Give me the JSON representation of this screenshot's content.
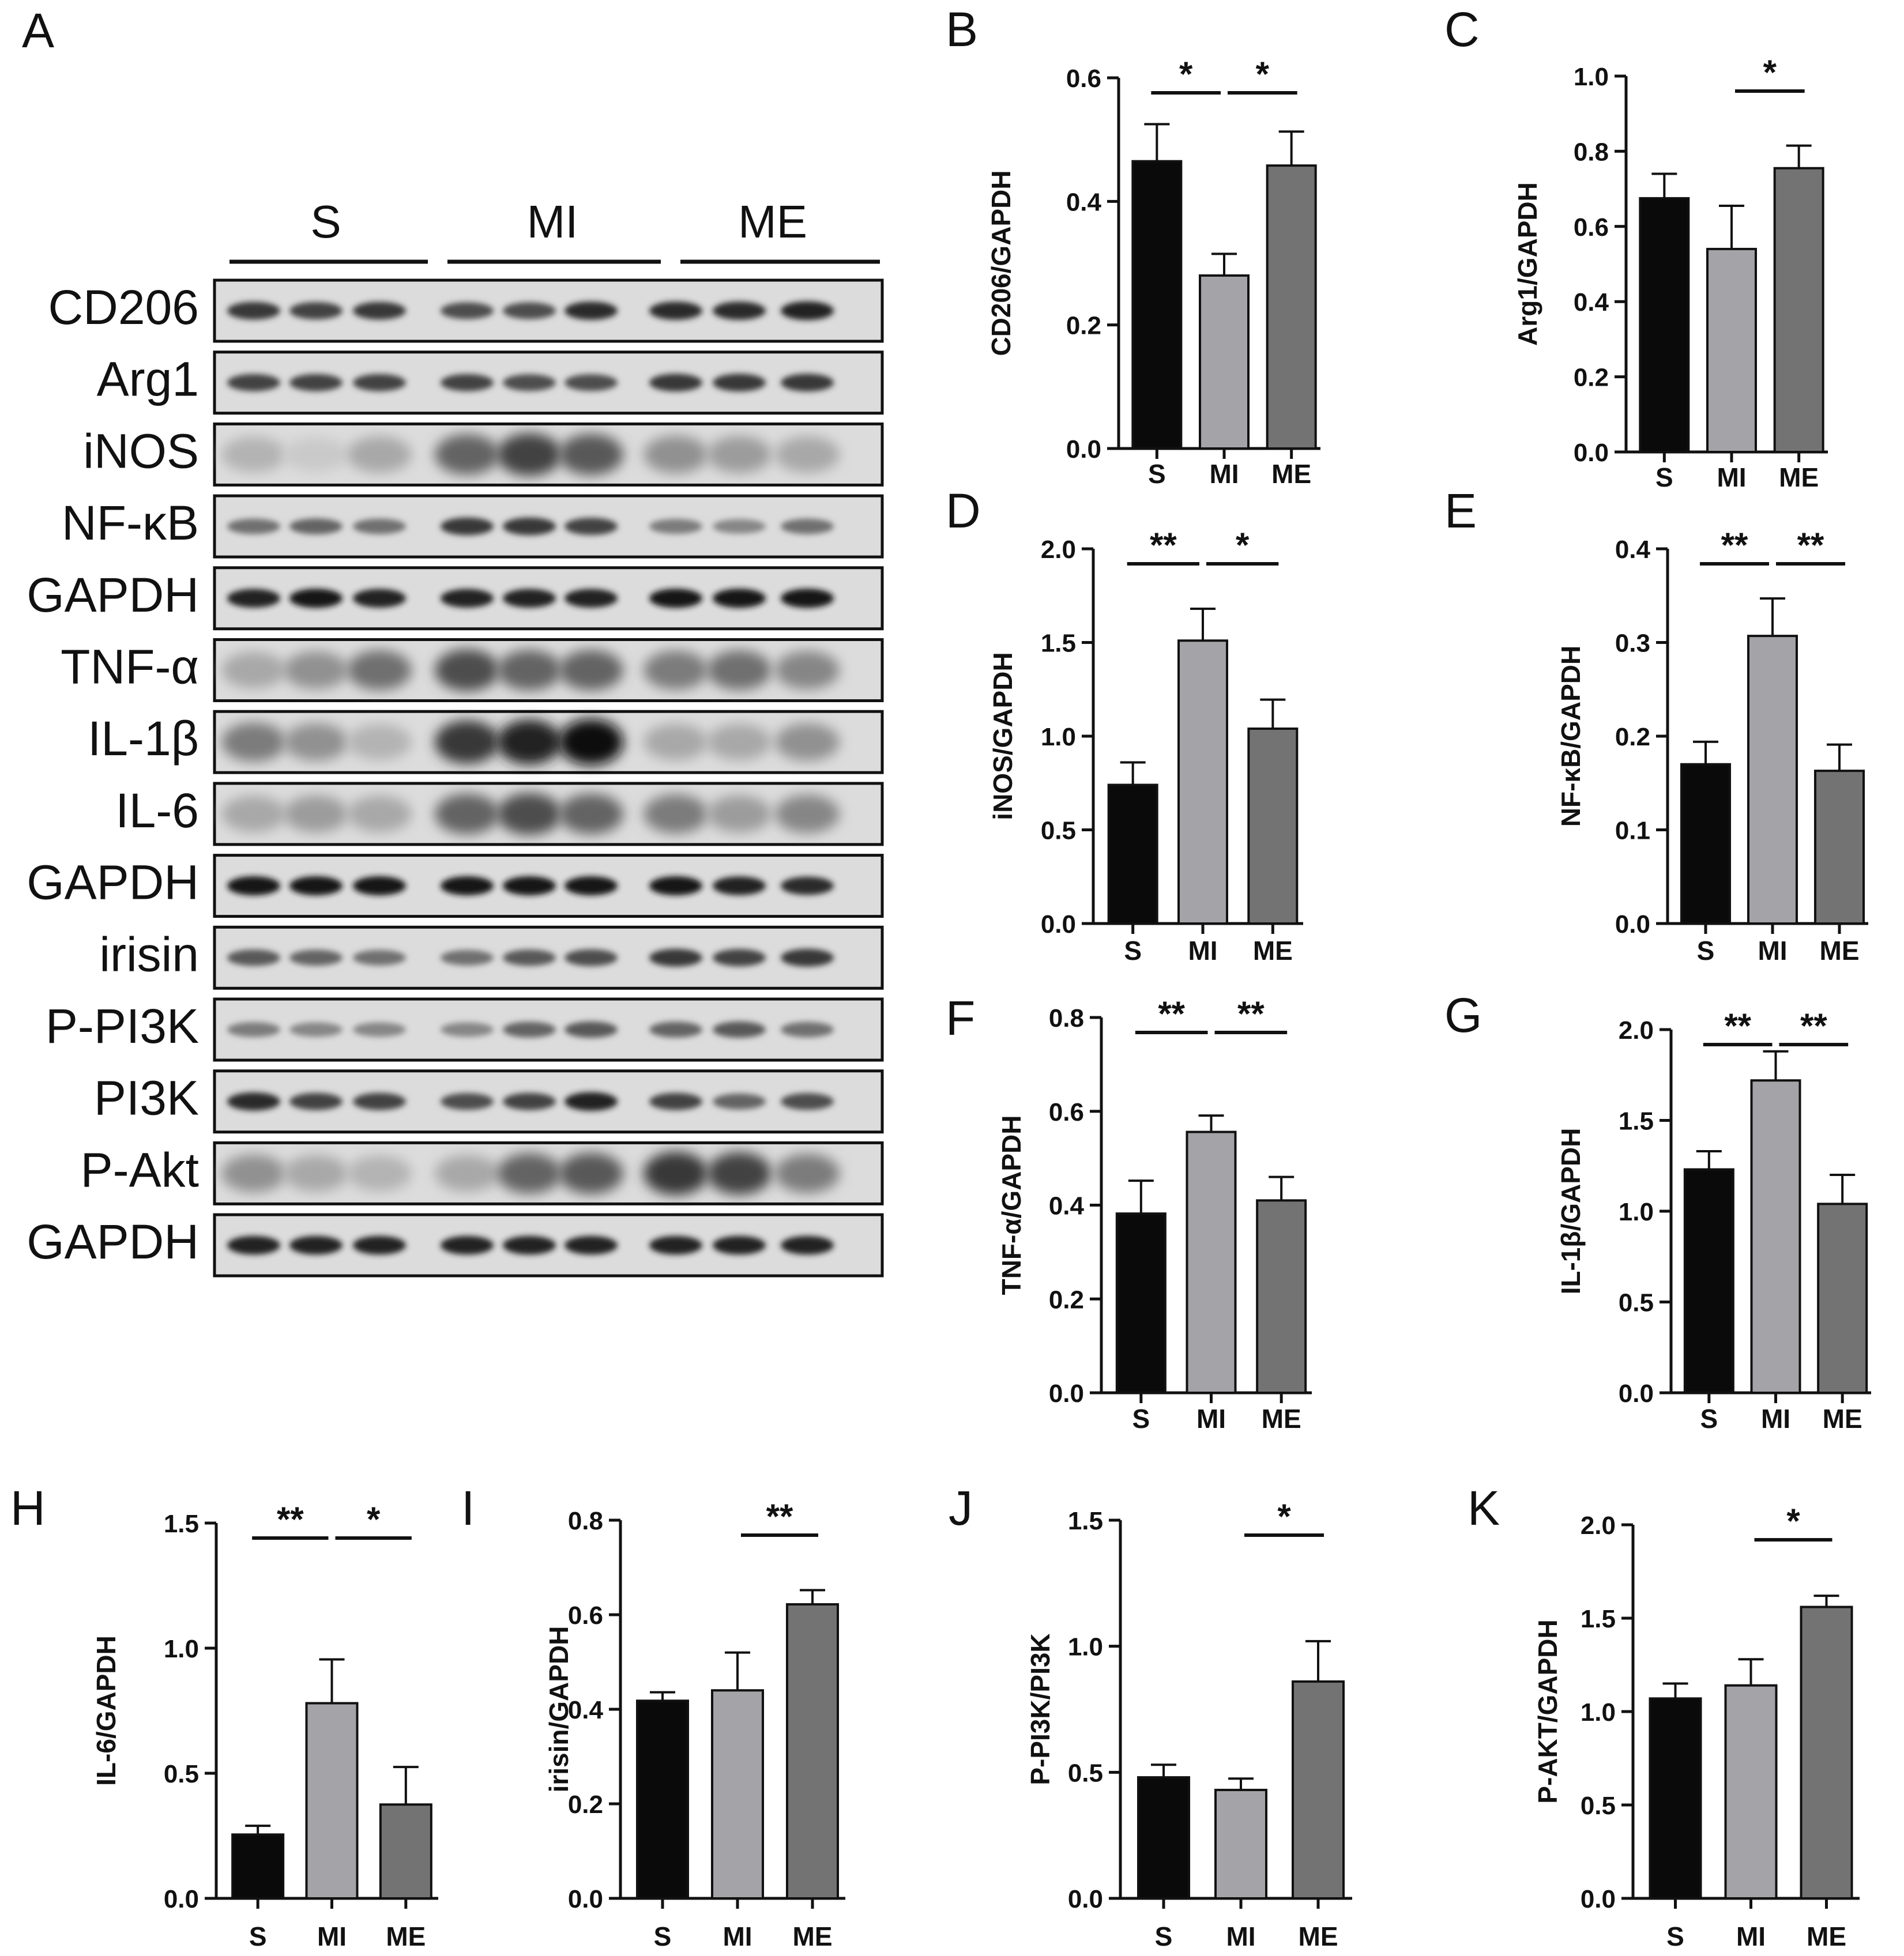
{
  "panel_a": {
    "letter": "A",
    "groups": [
      "S",
      "MI",
      "ME"
    ],
    "blots": [
      {
        "label": "CD206",
        "pattern": "even",
        "intensity": [
          0.8,
          0.75,
          0.8,
          0.7,
          0.7,
          0.85,
          0.85,
          0.85,
          0.9
        ]
      },
      {
        "label": "Arg1",
        "pattern": "even",
        "intensity": [
          0.75,
          0.75,
          0.75,
          0.75,
          0.7,
          0.7,
          0.8,
          0.8,
          0.8
        ]
      },
      {
        "label": "iNOS",
        "pattern": "diffuse",
        "intensity": [
          0.25,
          0.15,
          0.3,
          0.6,
          0.75,
          0.65,
          0.4,
          0.35,
          0.3
        ]
      },
      {
        "label": "NF-κB",
        "pattern": "even",
        "intensity": [
          0.55,
          0.6,
          0.55,
          0.8,
          0.8,
          0.75,
          0.5,
          0.45,
          0.55
        ]
      },
      {
        "label": "GAPDH",
        "pattern": "even",
        "intensity": [
          0.9,
          0.95,
          0.9,
          0.9,
          0.9,
          0.9,
          0.95,
          0.95,
          0.95
        ]
      },
      {
        "label": "TNF-α",
        "pattern": "diffuse",
        "intensity": [
          0.3,
          0.4,
          0.55,
          0.7,
          0.6,
          0.6,
          0.5,
          0.55,
          0.45
        ]
      },
      {
        "label": "IL-1β",
        "pattern": "diffuse",
        "intensity": [
          0.5,
          0.4,
          0.25,
          0.8,
          0.9,
          1.0,
          0.3,
          0.3,
          0.4
        ]
      },
      {
        "label": "IL-6",
        "pattern": "diffuse",
        "intensity": [
          0.3,
          0.35,
          0.3,
          0.6,
          0.7,
          0.6,
          0.5,
          0.35,
          0.45
        ]
      },
      {
        "label": "GAPDH",
        "pattern": "even",
        "intensity": [
          0.95,
          0.95,
          0.95,
          0.95,
          0.95,
          0.95,
          0.95,
          0.9,
          0.85
        ]
      },
      {
        "label": "irisin",
        "pattern": "even",
        "intensity": [
          0.65,
          0.6,
          0.55,
          0.55,
          0.65,
          0.7,
          0.8,
          0.75,
          0.8
        ]
      },
      {
        "label": "P-PI3K",
        "pattern": "even",
        "intensity": [
          0.5,
          0.45,
          0.45,
          0.45,
          0.6,
          0.65,
          0.6,
          0.65,
          0.55
        ]
      },
      {
        "label": "PI3K",
        "pattern": "even",
        "intensity": [
          0.85,
          0.75,
          0.75,
          0.7,
          0.75,
          0.9,
          0.75,
          0.6,
          0.7
        ]
      },
      {
        "label": "P-Akt",
        "pattern": "diffuse",
        "intensity": [
          0.4,
          0.3,
          0.25,
          0.3,
          0.6,
          0.65,
          0.8,
          0.75,
          0.5
        ]
      },
      {
        "label": "GAPDH",
        "pattern": "even",
        "intensity": [
          0.9,
          0.9,
          0.9,
          0.9,
          0.9,
          0.9,
          0.9,
          0.9,
          0.9
        ]
      }
    ]
  },
  "bar_colors": [
    "#0a0a0a",
    "#a3a3a8",
    "#737373"
  ],
  "chart_data": [
    {
      "letter": "B",
      "type": "bar",
      "categories": [
        "S",
        "MI",
        "ME"
      ],
      "values": [
        0.465,
        0.28,
        0.458
      ],
      "errors": [
        0.06,
        0.035,
        0.055
      ],
      "ylabel": "CD206/GAPDH",
      "ylim": [
        0,
        0.6
      ],
      "yticks": [
        "0.0",
        "0.2",
        "0.4",
        "0.6"
      ],
      "significance": [
        {
          "from": 0,
          "to": 1,
          "label": "*"
        },
        {
          "from": 1,
          "to": 2,
          "label": "*"
        }
      ]
    },
    {
      "letter": "C",
      "type": "bar",
      "categories": [
        "S",
        "MI",
        "ME"
      ],
      "values": [
        0.675,
        0.54,
        0.755
      ],
      "errors": [
        0.065,
        0.115,
        0.06
      ],
      "ylabel": "Arg1/GAPDH",
      "ylim": [
        0,
        1.0
      ],
      "yticks": [
        "0.0",
        "0.2",
        "0.4",
        "0.6",
        "0.8",
        "1.0"
      ],
      "significance": [
        {
          "from": 1,
          "to": 2,
          "label": "*"
        }
      ]
    },
    {
      "letter": "D",
      "type": "bar",
      "categories": [
        "S",
        "MI",
        "ME"
      ],
      "values": [
        0.74,
        1.51,
        1.04
      ],
      "errors": [
        0.12,
        0.17,
        0.155
      ],
      "ylabel": "iNOS/GAPDH",
      "ylim": [
        0,
        2.0
      ],
      "yticks": [
        "0.0",
        "0.5",
        "1.0",
        "1.5",
        "2.0"
      ],
      "significance": [
        {
          "from": 0,
          "to": 1,
          "label": "**"
        },
        {
          "from": 1,
          "to": 2,
          "label": "*"
        }
      ]
    },
    {
      "letter": "E",
      "type": "bar",
      "categories": [
        "S",
        "MI",
        "ME"
      ],
      "values": [
        0.17,
        0.307,
        0.163
      ],
      "errors": [
        0.024,
        0.04,
        0.028
      ],
      "ylabel": "NF-κB/GAPDH",
      "ylim": [
        0,
        0.4
      ],
      "yticks": [
        "0.0",
        "0.1",
        "0.2",
        "0.3",
        "0.4"
      ],
      "significance": [
        {
          "from": 0,
          "to": 1,
          "label": "**"
        },
        {
          "from": 1,
          "to": 2,
          "label": "**"
        }
      ]
    },
    {
      "letter": "F",
      "type": "bar",
      "categories": [
        "S",
        "MI",
        "ME"
      ],
      "values": [
        0.382,
        0.556,
        0.41
      ],
      "errors": [
        0.07,
        0.035,
        0.05
      ],
      "ylabel": "TNF-α/GAPDH",
      "ylim": [
        0,
        0.8
      ],
      "yticks": [
        "0.0",
        "0.2",
        "0.4",
        "0.6",
        "0.8"
      ],
      "significance": [
        {
          "from": 0,
          "to": 1,
          "label": "**"
        },
        {
          "from": 1,
          "to": 2,
          "label": "**"
        }
      ]
    },
    {
      "letter": "G",
      "type": "bar",
      "categories": [
        "S",
        "MI",
        "ME"
      ],
      "values": [
        1.23,
        1.72,
        1.04
      ],
      "errors": [
        0.1,
        0.16,
        0.16
      ],
      "ylabel": "IL-1β/GAPDH",
      "ylim": [
        0,
        2.0
      ],
      "yticks": [
        "0.0",
        "0.5",
        "1.0",
        "1.5",
        "2.0"
      ],
      "significance": [
        {
          "from": 0,
          "to": 1,
          "label": "**"
        },
        {
          "from": 1,
          "to": 2,
          "label": "**"
        }
      ]
    },
    {
      "letter": "H",
      "type": "bar",
      "categories": [
        "S",
        "MI",
        "ME"
      ],
      "values": [
        0.255,
        0.78,
        0.375
      ],
      "errors": [
        0.035,
        0.175,
        0.15
      ],
      "ylabel": "IL-6/GAPDH",
      "ylim": [
        0,
        1.5
      ],
      "yticks": [
        "0.0",
        "0.5",
        "1.0",
        "1.5"
      ],
      "significance": [
        {
          "from": 0,
          "to": 1,
          "label": "**"
        },
        {
          "from": 1,
          "to": 2,
          "label": "*"
        }
      ]
    },
    {
      "letter": "I",
      "type": "bar",
      "categories": [
        "S",
        "MI",
        "ME"
      ],
      "values": [
        0.418,
        0.44,
        0.622
      ],
      "errors": [
        0.018,
        0.08,
        0.03
      ],
      "ylabel": "irisin/GAPDH",
      "ylim": [
        0,
        0.8
      ],
      "yticks": [
        "0.0",
        "0.2",
        "0.4",
        "0.6",
        "0.8"
      ],
      "significance": [
        {
          "from": 1,
          "to": 2,
          "label": "**"
        }
      ]
    },
    {
      "letter": "J",
      "type": "bar",
      "categories": [
        "S",
        "MI",
        "ME"
      ],
      "values": [
        0.48,
        0.43,
        0.86
      ],
      "errors": [
        0.05,
        0.045,
        0.16
      ],
      "ylabel": "P-PI3K/PI3K",
      "ylim": [
        0,
        1.5
      ],
      "yticks": [
        "0.0",
        "0.5",
        "1.0",
        "1.5"
      ],
      "significance": [
        {
          "from": 1,
          "to": 2,
          "label": "*"
        }
      ]
    },
    {
      "letter": "K",
      "type": "bar",
      "categories": [
        "S",
        "MI",
        "ME"
      ],
      "values": [
        1.07,
        1.14,
        1.56
      ],
      "errors": [
        0.08,
        0.14,
        0.06
      ],
      "ylabel": "P-AKT/GAPDH",
      "ylim": [
        0,
        2.0
      ],
      "yticks": [
        "0.0",
        "0.5",
        "1.0",
        "1.5",
        "2.0"
      ],
      "significance": [
        {
          "from": 1,
          "to": 2,
          "label": "*"
        }
      ]
    }
  ]
}
